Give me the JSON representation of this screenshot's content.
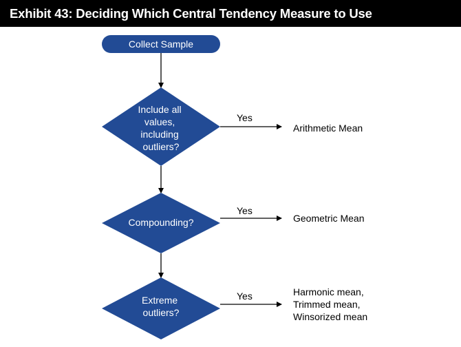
{
  "title": "Exhibit 43: Deciding Which Central Tendency Measure to Use",
  "colors": {
    "node_fill": "#224b95",
    "title_bg": "#000000",
    "arrow": "#000000"
  },
  "start": {
    "label": "Collect Sample"
  },
  "decisions": [
    {
      "lines": [
        "Include all",
        "values,",
        "including",
        "outliers?"
      ],
      "edge_label": "Yes",
      "outcome_lines": [
        "Arithmetic Mean"
      ]
    },
    {
      "lines": [
        "Compounding?"
      ],
      "edge_label": "Yes",
      "outcome_lines": [
        "Geometric Mean"
      ]
    },
    {
      "lines": [
        "Extreme",
        "outliers?"
      ],
      "edge_label": "Yes",
      "outcome_lines": [
        "Harmonic mean,",
        "Trimmed mean,",
        "Winsorized mean"
      ]
    }
  ]
}
